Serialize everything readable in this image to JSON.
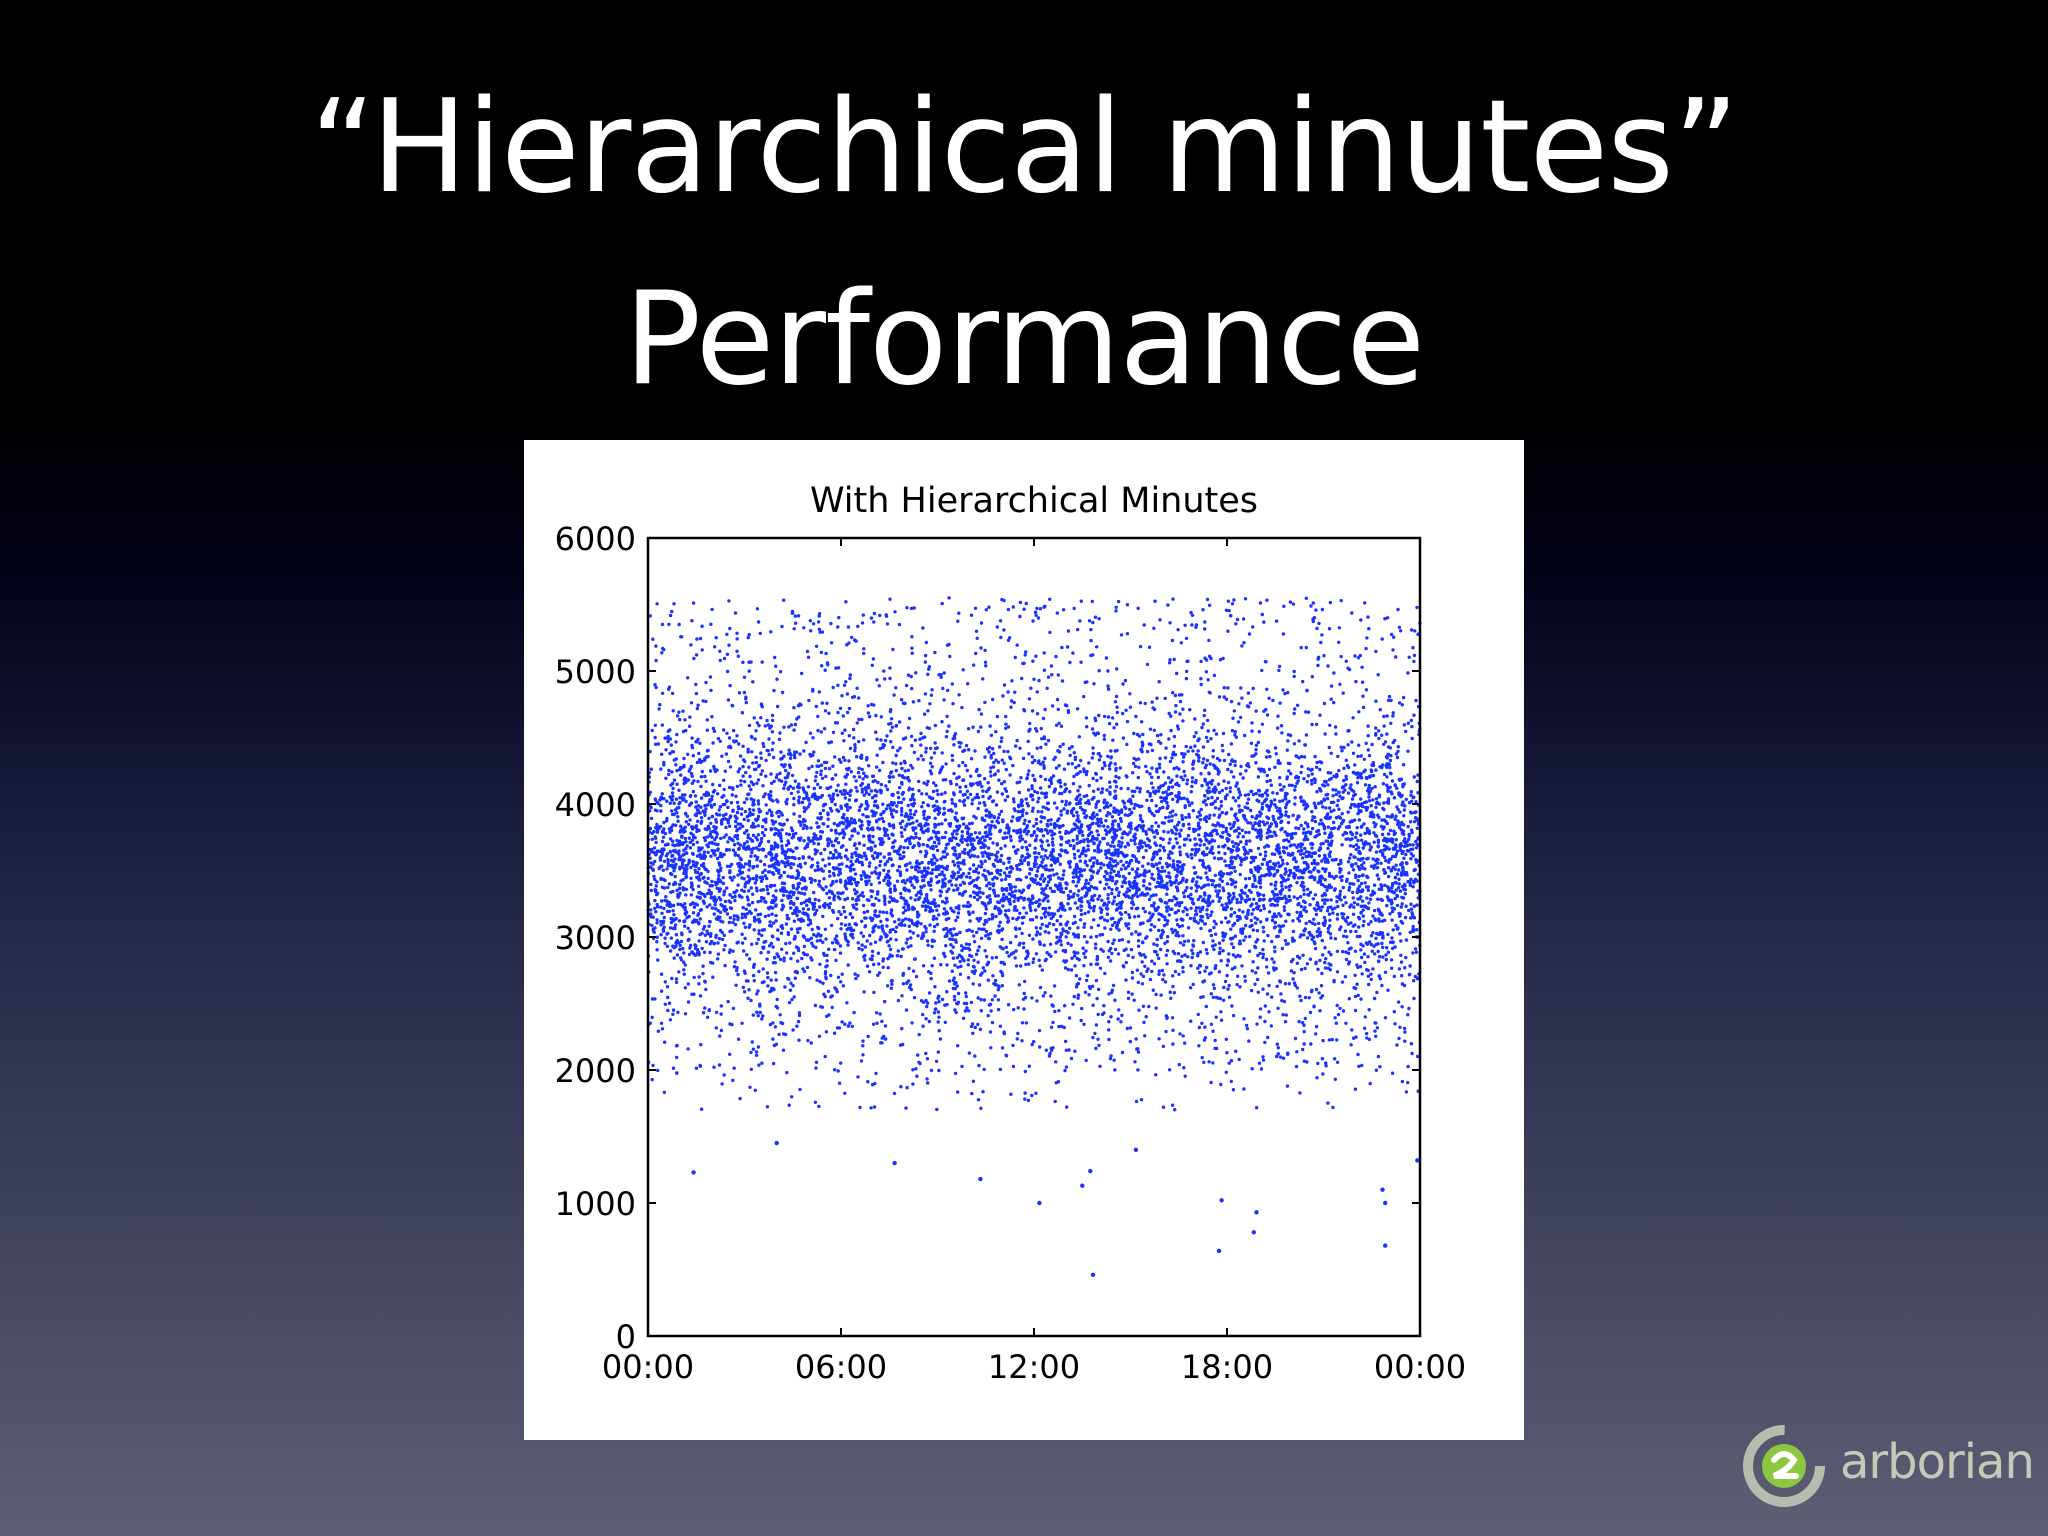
{
  "slide": {
    "title_line1": "“Hierarchical minutes”",
    "title_line2": "Performance"
  },
  "logo": {
    "text": "arborian",
    "icon": "arborian-swirl-icon"
  },
  "colors": {
    "marker": "#1a33ff",
    "axis": "#000000",
    "panel": "#ffffff"
  },
  "chart_data": {
    "type": "scatter",
    "title": "With Hierarchical Minutes",
    "xlabel": "",
    "ylabel": "",
    "xlim": [
      "00:00",
      "24:00"
    ],
    "ylim": [
      0,
      6000
    ],
    "x_ticks": [
      "00:00",
      "06:00",
      "12:00",
      "18:00",
      "00:00"
    ],
    "y_ticks": [
      0,
      1000,
      2000,
      3000,
      4000,
      5000,
      6000
    ],
    "grid": false,
    "legend": "none",
    "marker_size": "small",
    "distribution": {
      "point_count": 9000,
      "dense_band": [
        3000,
        4200
      ],
      "common_range": [
        2000,
        5500
      ],
      "upper_limit": 5550
    },
    "outliers": [
      {
        "x": "01:25",
        "y": 1230
      },
      {
        "x": "04:00",
        "y": 1450
      },
      {
        "x": "07:40",
        "y": 1300
      },
      {
        "x": "10:20",
        "y": 1180
      },
      {
        "x": "12:10",
        "y": 1000
      },
      {
        "x": "13:30",
        "y": 1130
      },
      {
        "x": "13:45",
        "y": 1240
      },
      {
        "x": "13:50",
        "y": 460
      },
      {
        "x": "15:10",
        "y": 1400
      },
      {
        "x": "17:45",
        "y": 640
      },
      {
        "x": "17:50",
        "y": 1020
      },
      {
        "x": "18:50",
        "y": 780
      },
      {
        "x": "18:55",
        "y": 930
      },
      {
        "x": "22:55",
        "y": 680
      },
      {
        "x": "22:55",
        "y": 1000
      },
      {
        "x": "22:50",
        "y": 1100
      },
      {
        "x": "23:55",
        "y": 1320
      }
    ]
  }
}
